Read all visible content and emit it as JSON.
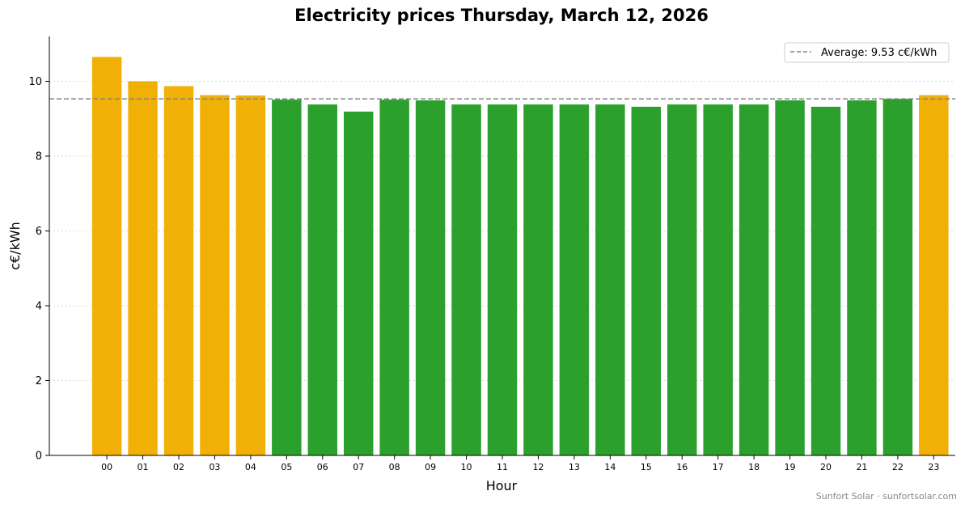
{
  "chart_data": {
    "type": "bar",
    "title": "Electricity prices Thursday, March 12, 2026",
    "xlabel": "Hour",
    "ylabel": "c€/kWh",
    "ylim": [
      0,
      11.2
    ],
    "yticks": [
      0,
      2,
      4,
      6,
      8,
      10
    ],
    "categories": [
      "00",
      "01",
      "02",
      "03",
      "04",
      "05",
      "06",
      "07",
      "08",
      "09",
      "10",
      "11",
      "12",
      "13",
      "14",
      "15",
      "16",
      "17",
      "18",
      "19",
      "20",
      "21",
      "22",
      "23"
    ],
    "values": [
      10.65,
      10.0,
      9.87,
      9.63,
      9.62,
      9.51,
      9.38,
      9.19,
      9.51,
      9.49,
      9.38,
      9.38,
      9.38,
      9.38,
      9.38,
      9.32,
      9.38,
      9.38,
      9.38,
      9.49,
      9.32,
      9.49,
      9.53,
      9.63
    ],
    "average": 9.53,
    "legend": {
      "label": "Average: 9.53 c€/kWh",
      "placement": "top-right"
    },
    "colors": {
      "above_average": "#f0b005",
      "below_average": "#2ca02c",
      "average_line": "#808080"
    },
    "grid": {
      "y": true,
      "style": "dotted"
    }
  },
  "footer": {
    "credit": "Sunfort Solar · sunfortsolar.com"
  }
}
